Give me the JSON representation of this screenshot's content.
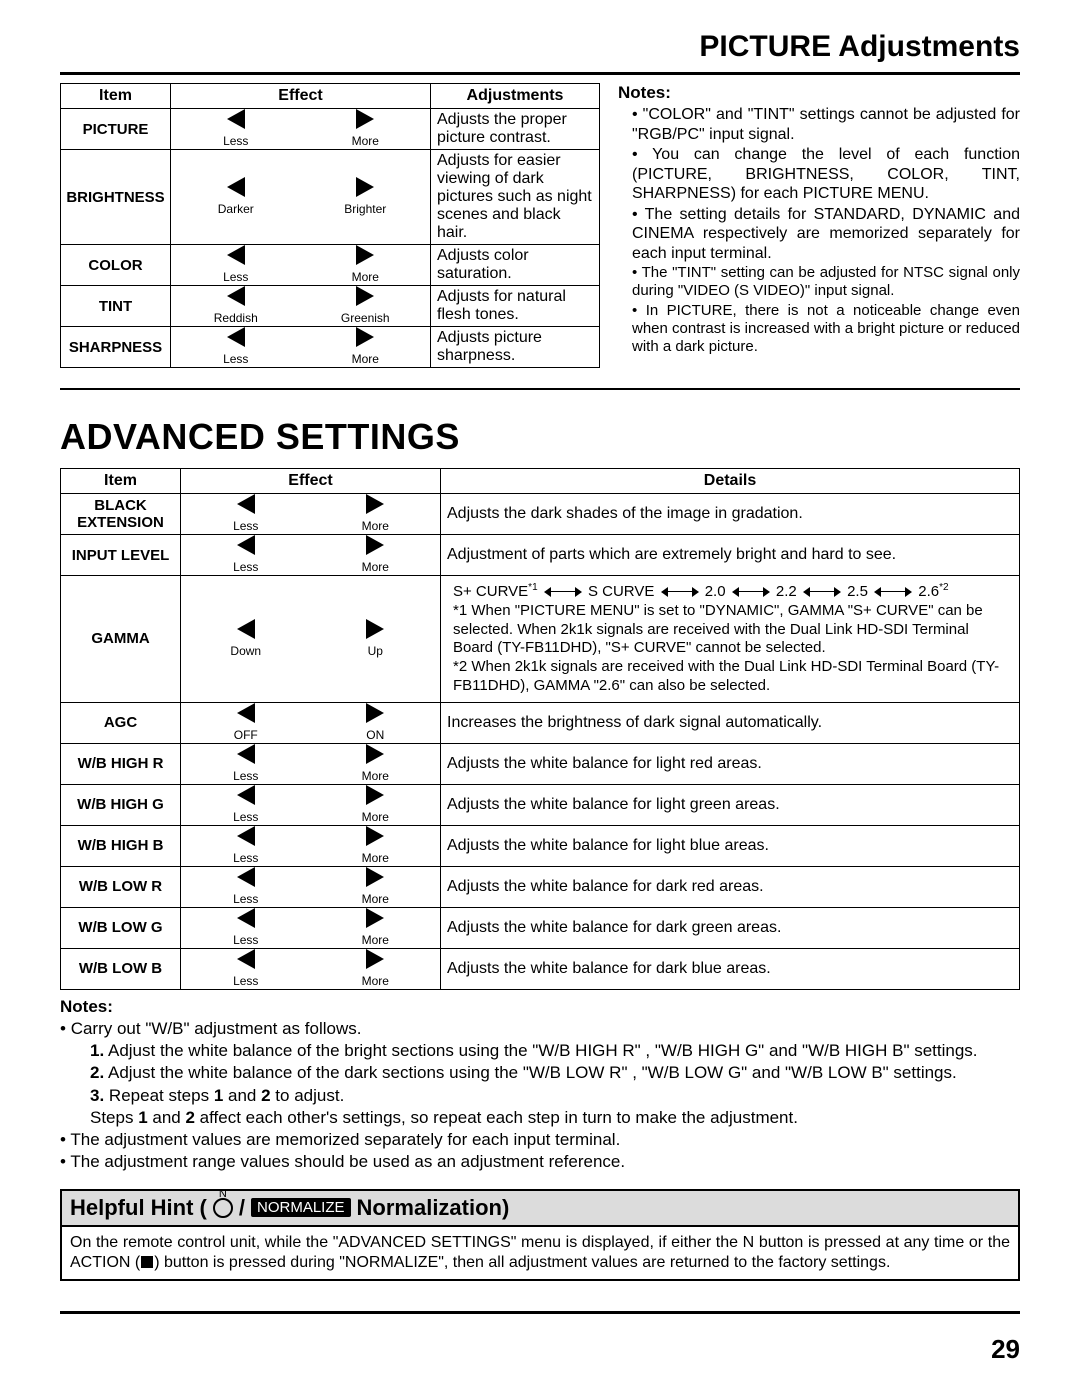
{
  "page_title": "PICTURE Adjustments",
  "page_number": "29",
  "colors": {
    "bg": "#ffffff",
    "text": "#000000",
    "hint_bg": "#dcdcdc"
  },
  "table1": {
    "headers": {
      "item": "Item",
      "effect": "Effect",
      "adjustments": "Adjustments"
    },
    "rows": [
      {
        "item": "PICTURE",
        "left": "Less",
        "right": "More",
        "desc": "Adjusts the proper picture contrast."
      },
      {
        "item": "BRIGHTNESS",
        "left": "Darker",
        "right": "Brighter",
        "desc": "Adjusts for easier viewing of dark pictures such as night scenes and black hair."
      },
      {
        "item": "COLOR",
        "left": "Less",
        "right": "More",
        "desc": "Adjusts color saturation."
      },
      {
        "item": "TINT",
        "left": "Reddish",
        "right": "Greenish",
        "desc": "Adjusts for natural flesh tones."
      },
      {
        "item": "SHARPNESS",
        "left": "Less",
        "right": "More",
        "desc": "Adjusts picture sharpness."
      }
    ]
  },
  "notes_top": {
    "heading": "Notes:",
    "items": [
      "\"COLOR\" and \"TINT\" settings cannot be adjusted for \"RGB/PC\" input signal.",
      "You can change the level of each function (PICTURE, BRIGHTNESS, COLOR, TINT, SHARPNESS) for each PICTURE MENU.",
      "The setting details for STANDARD, DYNAMIC and CINEMA respectively are memorized separately for each input terminal.",
      "The \"TINT\" setting can be adjusted for NTSC signal only during \"VIDEO (S VIDEO)\" input signal.",
      "In PICTURE, there is not a noticeable change even when contrast is increased with a bright picture or reduced with a dark picture."
    ]
  },
  "advanced_title": "ADVANCED SETTINGS",
  "table2": {
    "headers": {
      "item": "Item",
      "effect": "Effect",
      "details": "Details"
    },
    "rows": [
      {
        "item": "BLACK EXTENSION",
        "left": "Less",
        "right": "More",
        "desc": "Adjusts the dark shades of the image in gradation."
      },
      {
        "item": "INPUT LEVEL",
        "left": "Less",
        "right": "More",
        "desc": "Adjustment of parts which are extremely bright and hard to see."
      },
      {
        "item": "GAMMA",
        "left": "Down",
        "right": "Up",
        "gamma": true
      },
      {
        "item": "AGC",
        "left": "OFF",
        "right": "ON",
        "desc": "Increases the brightness of dark signal automatically."
      },
      {
        "item": "W/B HIGH R",
        "left": "Less",
        "right": "More",
        "desc": "Adjusts the white balance for light red areas."
      },
      {
        "item": "W/B HIGH G",
        "left": "Less",
        "right": "More",
        "desc": "Adjusts the white balance for light green areas."
      },
      {
        "item": "W/B HIGH B",
        "left": "Less",
        "right": "More",
        "desc": "Adjusts the white balance for light blue areas."
      },
      {
        "item": "W/B LOW R",
        "left": "Less",
        "right": "More",
        "desc": "Adjusts the white balance for dark red areas."
      },
      {
        "item": "W/B LOW G",
        "left": "Less",
        "right": "More",
        "desc": "Adjusts the white balance for dark green areas."
      },
      {
        "item": "W/B LOW B",
        "left": "Less",
        "right": "More",
        "desc": "Adjusts the white balance for dark blue areas."
      }
    ],
    "gamma_seq": [
      "S+ CURVE",
      "S CURVE",
      "2.0",
      "2.2",
      "2.5",
      "2.6"
    ],
    "gamma_note1": "*1 When \"PICTURE MENU\" is set to \"DYNAMIC\", GAMMA \"S+ CURVE\" can be selected. When 2k1k signals are received with the Dual Link HD-SDI Terminal Board (TY-FB11DHD), \"S+ CURVE\" cannot be selected.",
    "gamma_note2": "*2 When 2k1k signals are received with the Dual Link HD-SDI Terminal Board (TY-FB11DHD), GAMMA \"2.6\" can also be selected."
  },
  "notes_bottom": {
    "heading": "Notes:",
    "b0": "Carry out \"W/B\" adjustment as follows.",
    "s1": "Adjust the white balance of the bright sections using the \"W/B HIGH R\" , \"W/B HIGH G\" and \"W/B HIGH B\" settings.",
    "s2": "Adjust the white balance of the dark sections using the \"W/B LOW R\" , \"W/B LOW G\" and \"W/B LOW B\" settings.",
    "s3a": "Repeat steps ",
    "s3b": " and ",
    "s3c": " to adjust.",
    "s4a": "Steps ",
    "s4b": " and ",
    "s4c": " affect each other's settings, so repeat each step in turn to make the adjustment.",
    "n1": "1",
    "n2": "2",
    "n1b": "1.",
    "n2b": "2.",
    "n3b": "3.",
    "b1": "The adjustment values are memorized separately for each input terminal.",
    "b2": "The adjustment range values should be used as an adjustment reference."
  },
  "hint": {
    "label_a": "Helpful Hint (",
    "slash": " / ",
    "pill": "NORMALIZE",
    "label_b": " Normalization)",
    "body": "On the remote control unit, while the \"ADVANCED SETTINGS\" menu is displayed, if either the N button is pressed at any time or the ACTION (■) button is pressed during \"NORMALIZE\", then all adjustment values are returned to the factory settings."
  }
}
